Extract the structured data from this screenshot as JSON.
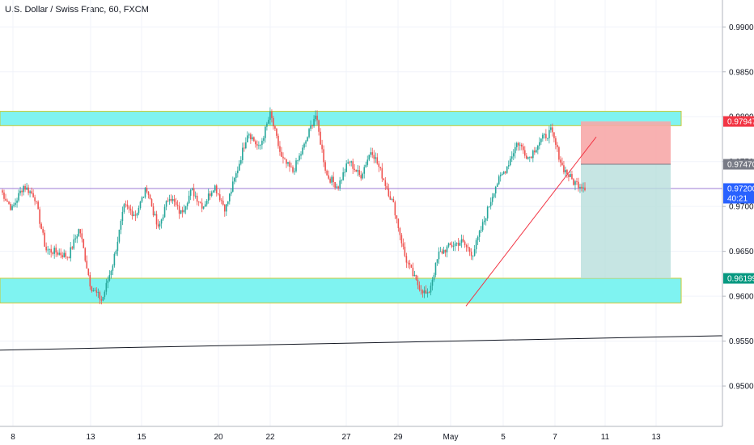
{
  "chart_data": {
    "type": "candlestick",
    "title": "U.S. Dollar / Swiss Franc, 60, FXCM",
    "y_ticks": [
      "0.99000",
      "0.98500",
      "0.98000",
      "0.97500",
      "0.97000",
      "0.96500",
      "0.96000",
      "0.95500",
      "0.95000"
    ],
    "y_range": [
      0.9455,
      0.993
    ],
    "x_ticks": [
      "8",
      "13",
      "15",
      "20",
      "22",
      "27",
      "29",
      "May",
      "5",
      "7",
      "11",
      "13"
    ],
    "price_labels": [
      {
        "text": "0.97947",
        "value": 0.97947,
        "color": "#f23645"
      },
      {
        "text": "0.97470",
        "value": 0.9747,
        "color": "#787b86"
      },
      {
        "text": "0.97200",
        "value": 0.972,
        "color": "#2962ff"
      },
      {
        "text": "40:21",
        "value": 0.9708,
        "color": "#2962ff"
      },
      {
        "text": "0.96199",
        "value": 0.96199,
        "color": "#089981"
      }
    ],
    "zones": [
      {
        "name": "resistance",
        "from": 0.979,
        "to": 0.9806,
        "color": "#7ff3f1"
      },
      {
        "name": "support",
        "from": 0.95925,
        "to": 0.962,
        "color": "#7ff3f1"
      }
    ],
    "horizontal_line": 0.972,
    "trendline_long": {
      "from": 0.954,
      "to": 0.9556
    },
    "position": {
      "entry": 0.9747,
      "stop": 0.97947,
      "target": 0.96199
    },
    "colors": {
      "up": "#26a69a",
      "down": "#ef5350",
      "line": "#9c27b0"
    },
    "series_key_points": [
      0.9718,
      0.9697,
      0.9723,
      0.9712,
      0.9652,
      0.9649,
      0.9644,
      0.9676,
      0.9611,
      0.9595,
      0.9638,
      0.97,
      0.9691,
      0.9721,
      0.9674,
      0.9713,
      0.9692,
      0.9718,
      0.97,
      0.9724,
      0.9697,
      0.9738,
      0.9784,
      0.9764,
      0.9803,
      0.9753,
      0.9739,
      0.9767,
      0.9803,
      0.9735,
      0.9722,
      0.9751,
      0.9733,
      0.9764,
      0.9733,
      0.97,
      0.9643,
      0.9615,
      0.96,
      0.9647,
      0.9656,
      0.9661,
      0.9647,
      0.9683,
      0.9722,
      0.9743,
      0.9772,
      0.9754,
      0.9773,
      0.9784,
      0.9744,
      0.9727,
      0.9722
    ]
  }
}
